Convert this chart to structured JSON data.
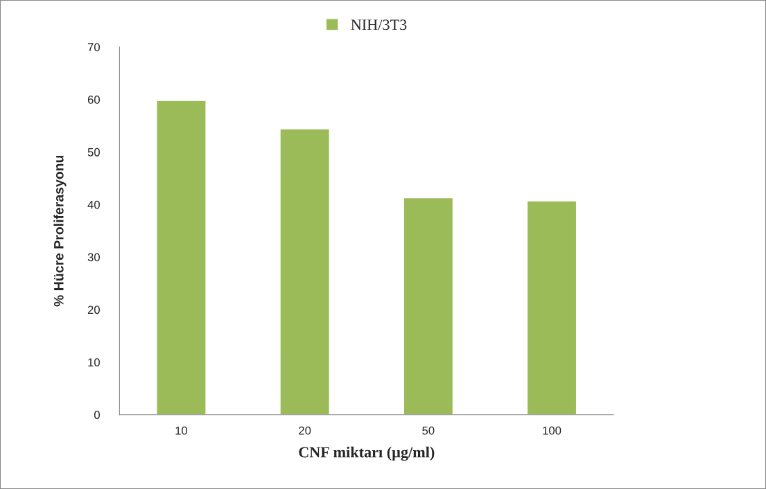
{
  "chart_data": {
    "type": "bar",
    "categories": [
      "10",
      "20",
      "50",
      "100"
    ],
    "series": [
      {
        "name": "NIH/3T3",
        "color": "#9bbb59",
        "values": [
          59.8,
          54.4,
          41.3,
          40.7
        ]
      }
    ],
    "xlabel": "CNF miktarı (µg/ml)",
    "ylabel": "% Hücre Proliferasyonu",
    "ylim": [
      0,
      70
    ],
    "yticks": [
      0,
      10,
      20,
      30,
      40,
      50,
      60,
      70
    ],
    "legend": "top"
  }
}
